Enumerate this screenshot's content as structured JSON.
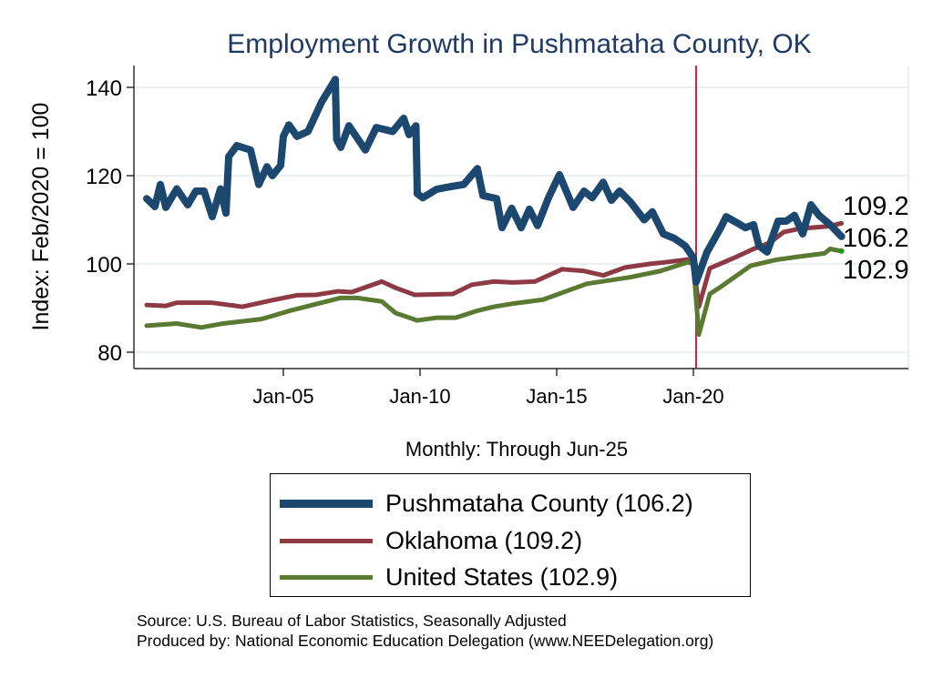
{
  "chart_data": {
    "type": "line",
    "title": "Employment Growth in Pushmataha  County, OK",
    "ylabel": "Index: Feb/2020 = 100",
    "xlabel": "Monthly: Through Jun-25",
    "ylim": [
      78,
      146
    ],
    "xlim": [
      1999.5,
      2028.0
    ],
    "yticks": [
      80,
      100,
      120,
      140
    ],
    "xticks": [
      {
        "label": "Jan-05",
        "x": 2005.0
      },
      {
        "label": "Jan-10",
        "x": 2010.0
      },
      {
        "label": "Jan-15",
        "x": 2015.0
      },
      {
        "label": "Jan-20",
        "x": 2020.0
      }
    ],
    "reference_line_x": 2020.1,
    "grid": true,
    "legend_position": "bottom",
    "series": [
      {
        "name": "Pushmataha  County (106.2)",
        "color": "#1c4870",
        "width": 8,
        "end_label": "106.2",
        "points": [
          [
            2000.0,
            114.8
          ],
          [
            2000.3,
            113
          ],
          [
            2000.5,
            118
          ],
          [
            2000.7,
            112.8
          ],
          [
            2001.1,
            117
          ],
          [
            2001.5,
            113.4
          ],
          [
            2001.8,
            116.5
          ],
          [
            2002.1,
            116.5
          ],
          [
            2002.4,
            110.7
          ],
          [
            2002.7,
            117
          ],
          [
            2002.9,
            111.5
          ],
          [
            2003.0,
            124.3
          ],
          [
            2003.3,
            126.8
          ],
          [
            2003.8,
            125.8
          ],
          [
            2004.1,
            118
          ],
          [
            2004.4,
            122
          ],
          [
            2004.6,
            120
          ],
          [
            2004.9,
            122.3
          ],
          [
            2005.0,
            128.9
          ],
          [
            2005.2,
            131.5
          ],
          [
            2005.5,
            128.9
          ],
          [
            2005.9,
            130
          ],
          [
            2006.2,
            134
          ],
          [
            2006.4,
            136.7
          ],
          [
            2006.9,
            141.8
          ],
          [
            2006.95,
            128.2
          ],
          [
            2007.1,
            126.4
          ],
          [
            2007.4,
            131.3
          ],
          [
            2008.0,
            125.8
          ],
          [
            2008.4,
            130.9
          ],
          [
            2009.0,
            130
          ],
          [
            2009.4,
            133
          ],
          [
            2009.6,
            129.3
          ],
          [
            2009.85,
            131.3
          ],
          [
            2009.9,
            115.9
          ],
          [
            2010.1,
            115
          ],
          [
            2010.6,
            116.9
          ],
          [
            2011.1,
            117.5
          ],
          [
            2011.6,
            118
          ],
          [
            2012.1,
            121.6
          ],
          [
            2012.3,
            115.5
          ],
          [
            2012.8,
            114.8
          ],
          [
            2013.0,
            108.2
          ],
          [
            2013.35,
            112.6
          ],
          [
            2013.7,
            108.2
          ],
          [
            2014.0,
            112.4
          ],
          [
            2014.3,
            108.7
          ],
          [
            2014.7,
            115
          ],
          [
            2015.1,
            120.2
          ],
          [
            2015.6,
            112.8
          ],
          [
            2016.0,
            116.5
          ],
          [
            2016.3,
            115
          ],
          [
            2016.7,
            118.5
          ],
          [
            2017.0,
            114.4
          ],
          [
            2017.3,
            116.5
          ],
          [
            2017.7,
            114
          ],
          [
            2018.2,
            110
          ],
          [
            2018.5,
            111.8
          ],
          [
            2018.9,
            106.8
          ],
          [
            2019.3,
            105.8
          ],
          [
            2019.7,
            104.1
          ],
          [
            2020.0,
            101.4
          ],
          [
            2020.1,
            95.9
          ],
          [
            2020.5,
            102.7
          ],
          [
            2021.0,
            108.2
          ],
          [
            2021.2,
            110.7
          ],
          [
            2021.6,
            109.3
          ],
          [
            2021.9,
            108.2
          ],
          [
            2022.2,
            108.9
          ],
          [
            2022.4,
            104.1
          ],
          [
            2022.7,
            102.7
          ],
          [
            2023.1,
            109.7
          ],
          [
            2023.4,
            109.7
          ],
          [
            2023.7,
            111
          ],
          [
            2024.0,
            106.8
          ],
          [
            2024.3,
            113.4
          ],
          [
            2024.6,
            111
          ],
          [
            2025.0,
            108.9
          ],
          [
            2025.42,
            106.2
          ]
        ]
      },
      {
        "name": "Oklahoma (109.2)",
        "color": "#8e3a44",
        "width": 5,
        "end_label": "109.2",
        "points": [
          [
            2000.0,
            90.7
          ],
          [
            2000.7,
            90.5
          ],
          [
            2001.1,
            91.2
          ],
          [
            2002.4,
            91.2
          ],
          [
            2003.5,
            90.3
          ],
          [
            2004.6,
            91.8
          ],
          [
            2005.5,
            92.9
          ],
          [
            2006.2,
            93
          ],
          [
            2007.0,
            93.8
          ],
          [
            2007.5,
            93.6
          ],
          [
            2008.6,
            96
          ],
          [
            2009.1,
            94.6
          ],
          [
            2009.8,
            93
          ],
          [
            2011.2,
            93.2
          ],
          [
            2011.9,
            95.3
          ],
          [
            2012.7,
            96
          ],
          [
            2013.4,
            95.8
          ],
          [
            2014.2,
            96
          ],
          [
            2015.2,
            98.8
          ],
          [
            2016.0,
            98.4
          ],
          [
            2016.7,
            97.4
          ],
          [
            2017.5,
            99.2
          ],
          [
            2018.4,
            100
          ],
          [
            2019.0,
            100.4
          ],
          [
            2019.8,
            101
          ],
          [
            2020.0,
            100.2
          ],
          [
            2020.2,
            90.3
          ],
          [
            2020.6,
            99
          ],
          [
            2021.5,
            101.4
          ],
          [
            2022.2,
            103.4
          ],
          [
            2022.8,
            104.8
          ],
          [
            2023.3,
            107.2
          ],
          [
            2023.9,
            108
          ],
          [
            2024.9,
            108.5
          ],
          [
            2025.42,
            109.2
          ]
        ]
      },
      {
        "name": "United States (102.9)",
        "color": "#5a7a32",
        "width": 5,
        "end_label": "102.9",
        "points": [
          [
            2000.0,
            86
          ],
          [
            2001.1,
            86.5
          ],
          [
            2002.0,
            85.6
          ],
          [
            2002.8,
            86.5
          ],
          [
            2004.2,
            87.5
          ],
          [
            2005.3,
            89.5
          ],
          [
            2007.1,
            92.3
          ],
          [
            2007.7,
            92.3
          ],
          [
            2008.6,
            91.5
          ],
          [
            2009.1,
            88.9
          ],
          [
            2009.9,
            87.2
          ],
          [
            2010.6,
            87.8
          ],
          [
            2011.3,
            87.8
          ],
          [
            2012.1,
            89.4
          ],
          [
            2012.7,
            90.3
          ],
          [
            2013.4,
            91
          ],
          [
            2014.5,
            91.9
          ],
          [
            2016.1,
            95.5
          ],
          [
            2017.7,
            97
          ],
          [
            2018.8,
            98.4
          ],
          [
            2019.8,
            100.4
          ],
          [
            2020.0,
            100
          ],
          [
            2020.2,
            84
          ],
          [
            2020.6,
            93.2
          ],
          [
            2021.0,
            94.8
          ],
          [
            2022.1,
            99.6
          ],
          [
            2023.0,
            100.9
          ],
          [
            2023.8,
            101.6
          ],
          [
            2024.8,
            102.4
          ],
          [
            2025.0,
            103.4
          ],
          [
            2025.42,
            102.9
          ]
        ]
      }
    ]
  },
  "footer": {
    "source": "Source: U.S. Bureau of Labor Statistics, Seasonally Adjusted",
    "produced_by": "Produced by: National Economic Education Delegation (www.NEEDelegation.org)"
  }
}
